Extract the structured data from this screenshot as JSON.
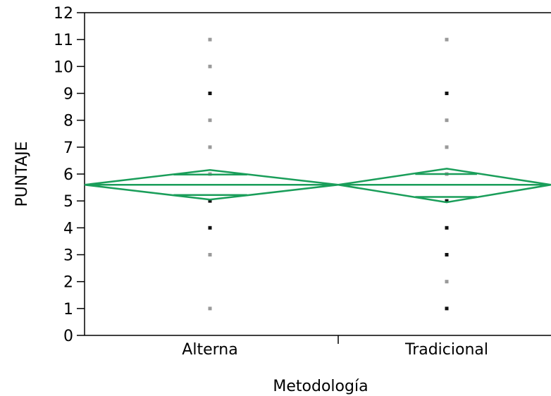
{
  "chart_data": {
    "type": "scatter",
    "subtype": "one-way means diamonds",
    "xlabel": "Metodología",
    "ylabel": "PUNTAJE",
    "categories": [
      "Alterna",
      "Tradicional"
    ],
    "ylim": [
      0,
      12
    ],
    "yticks": [
      "0",
      "1",
      "2",
      "3",
      "4",
      "5",
      "6",
      "7",
      "8",
      "9",
      "10",
      "11",
      "12"
    ],
    "points": [
      {
        "category": "Alterna",
        "values": [
          1,
          3,
          4,
          5,
          6,
          7,
          8,
          9,
          10,
          11
        ]
      },
      {
        "category": "Tradicional",
        "values": [
          1,
          2,
          3,
          4,
          5,
          6,
          7,
          8,
          9,
          11
        ]
      }
    ],
    "grand_mean": 5.6,
    "diamonds": [
      {
        "category": "Alterna",
        "mean": 5.6,
        "upper": 6.15,
        "lower": 5.05,
        "upper_overlap": 5.98,
        "lower_overlap": 5.22
      },
      {
        "category": "Tradicional",
        "mean": 5.6,
        "upper": 6.2,
        "lower": 4.95,
        "upper_overlap": 6.0,
        "lower_overlap": 5.15
      }
    ],
    "grid": false,
    "colors": {
      "diamond": "#1a9e5a",
      "axis": "#000000",
      "point_dark": "#111111",
      "point_light": "#9a9a9a"
    },
    "dark_points": {
      "Alterna": [
        4,
        5,
        9
      ],
      "Tradicional": [
        1,
        3,
        4,
        5,
        9
      ]
    }
  }
}
